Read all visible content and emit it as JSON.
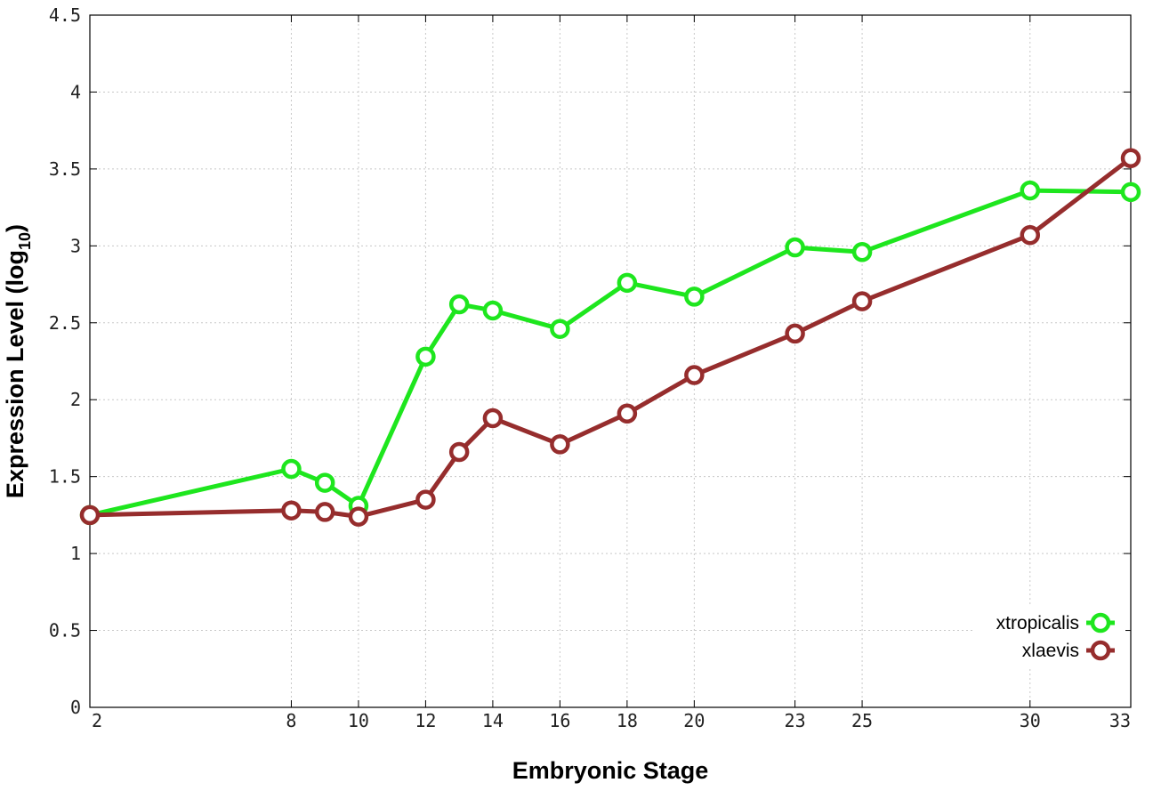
{
  "chart_data": {
    "type": "line",
    "xlabel": "Embryonic Stage",
    "ylabel": "Expression Level (log",
    "ylabel_subscript": "10",
    "ylabel_close": ")",
    "x_ticks": [
      "2",
      "8",
      "10",
      "12",
      "14",
      "16",
      "18",
      "20",
      "23",
      "25",
      "30",
      "33"
    ],
    "y_ticks": [
      "0",
      "0.5",
      "1",
      "1.5",
      "2",
      "2.5",
      "3",
      "3.5",
      "4",
      "4.5"
    ],
    "xlim": [
      2,
      33
    ],
    "ylim": [
      0,
      4.5
    ],
    "grid": true,
    "legend_position": "bottom-right",
    "x": [
      2,
      8,
      9,
      10,
      12,
      13,
      14,
      16,
      18,
      20,
      23,
      25,
      30,
      33
    ],
    "series": [
      {
        "name": "xtropicalis",
        "color": "#1ee61e",
        "values": [
          1.25,
          1.55,
          1.46,
          1.31,
          2.28,
          2.62,
          2.58,
          2.46,
          2.76,
          2.67,
          2.99,
          2.96,
          3.36,
          3.35
        ]
      },
      {
        "name": "xlaevis",
        "color": "#962d2d",
        "values": [
          1.25,
          1.28,
          1.27,
          1.24,
          1.35,
          1.66,
          1.88,
          1.71,
          1.91,
          2.16,
          2.43,
          2.64,
          3.07,
          3.57
        ]
      }
    ]
  }
}
